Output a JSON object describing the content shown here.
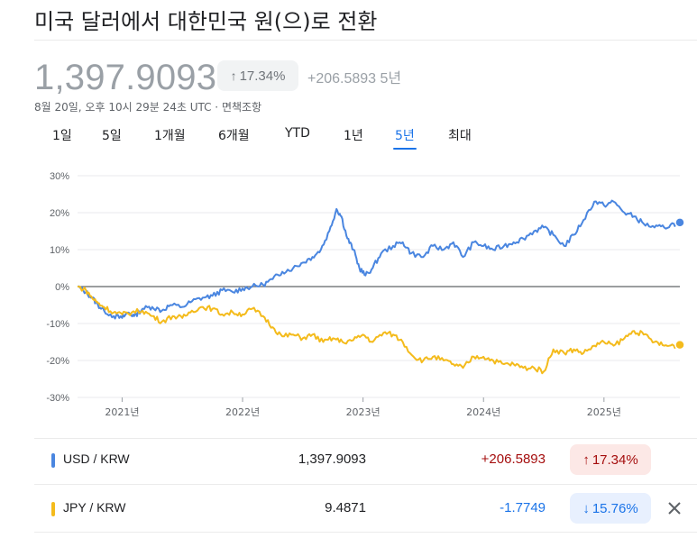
{
  "header": {
    "title": "미국 달러에서 대한민국 원(으)로 전환",
    "price": "1,397.9093",
    "pct_change_arrow": "↑",
    "pct_change": "17.34%",
    "abs_change": "+206.5893 5년",
    "timestamp": "8월 20일, 오후 10시 29분 24초 UTC · ",
    "disclaimer": "면책조항"
  },
  "tabs": [
    "1일",
    "5일",
    "1개월",
    "6개월",
    "YTD",
    "1년",
    "5년",
    "최대"
  ],
  "active_tab": "5년",
  "colors": {
    "usd_line": "#4a86e0",
    "jpy_line": "#f4bb1c",
    "positive": "#a50e0e",
    "positive_bg": "#fce8e6",
    "negative": "#1a73e8",
    "negative_bg": "#e8f0fe",
    "grid": "#e8eaed",
    "zero": "#5f6368"
  },
  "chart_data": {
    "type": "line",
    "title": "",
    "ylabel": "",
    "xlabel": "",
    "ylim": [
      -30,
      30
    ],
    "xlim": [
      2020.63,
      2025.63
    ],
    "yticks": [
      30,
      20,
      10,
      0,
      -10,
      -20,
      -30
    ],
    "ytick_labels": [
      "30%",
      "20%",
      "10%",
      "0%",
      "-10%",
      "-20%",
      "-30%"
    ],
    "xticks": [
      2021,
      2022,
      2023,
      2024,
      2025
    ],
    "xtick_labels": [
      "2021년",
      "2022년",
      "2023년",
      "2024년",
      "2025년"
    ],
    "series": [
      {
        "name": "USD / KRW",
        "points": [
          [
            2020.63,
            0
          ],
          [
            2020.7,
            -1.5
          ],
          [
            2020.75,
            -3
          ],
          [
            2020.8,
            -5
          ],
          [
            2020.85,
            -6.5
          ],
          [
            2020.93,
            -8
          ],
          [
            2021.0,
            -8.5
          ],
          [
            2021.05,
            -7
          ],
          [
            2021.1,
            -8
          ],
          [
            2021.17,
            -6
          ],
          [
            2021.25,
            -5.5
          ],
          [
            2021.33,
            -6.5
          ],
          [
            2021.4,
            -5
          ],
          [
            2021.5,
            -5.5
          ],
          [
            2021.58,
            -4
          ],
          [
            2021.67,
            -3
          ],
          [
            2021.75,
            -2.5
          ],
          [
            2021.83,
            -1
          ],
          [
            2021.92,
            -1.5
          ],
          [
            2022.0,
            -0.5
          ],
          [
            2022.08,
            0
          ],
          [
            2022.17,
            0.5
          ],
          [
            2022.25,
            2
          ],
          [
            2022.33,
            4
          ],
          [
            2022.42,
            5
          ],
          [
            2022.5,
            6.5
          ],
          [
            2022.58,
            8
          ],
          [
            2022.65,
            10
          ],
          [
            2022.72,
            15
          ],
          [
            2022.78,
            21
          ],
          [
            2022.82,
            19
          ],
          [
            2022.87,
            13
          ],
          [
            2022.92,
            10
          ],
          [
            2022.97,
            5
          ],
          [
            2023.02,
            3
          ],
          [
            2023.08,
            5
          ],
          [
            2023.15,
            9
          ],
          [
            2023.25,
            11
          ],
          [
            2023.33,
            12
          ],
          [
            2023.4,
            9
          ],
          [
            2023.5,
            8
          ],
          [
            2023.58,
            11
          ],
          [
            2023.67,
            10
          ],
          [
            2023.75,
            12
          ],
          [
            2023.83,
            8
          ],
          [
            2023.92,
            12
          ],
          [
            2024.0,
            11
          ],
          [
            2024.08,
            10
          ],
          [
            2024.17,
            11
          ],
          [
            2024.25,
            12
          ],
          [
            2024.33,
            13
          ],
          [
            2024.42,
            15
          ],
          [
            2024.5,
            16
          ],
          [
            2024.58,
            14
          ],
          [
            2024.67,
            11
          ],
          [
            2024.75,
            14
          ],
          [
            2024.83,
            18
          ],
          [
            2024.92,
            23
          ],
          [
            2025.0,
            22
          ],
          [
            2025.08,
            23
          ],
          [
            2025.17,
            20
          ],
          [
            2025.25,
            19
          ],
          [
            2025.33,
            17
          ],
          [
            2025.42,
            16
          ],
          [
            2025.5,
            16
          ],
          [
            2025.58,
            17
          ],
          [
            2025.63,
            17.34
          ]
        ]
      },
      {
        "name": "JPY / KRW",
        "points": [
          [
            2020.63,
            0
          ],
          [
            2020.7,
            -1
          ],
          [
            2020.75,
            -3
          ],
          [
            2020.8,
            -4.5
          ],
          [
            2020.85,
            -5.5
          ],
          [
            2020.93,
            -7
          ],
          [
            2021.0,
            -7.5
          ],
          [
            2021.08,
            -7
          ],
          [
            2021.17,
            -6.5
          ],
          [
            2021.25,
            -8
          ],
          [
            2021.33,
            -9.5
          ],
          [
            2021.42,
            -8
          ],
          [
            2021.5,
            -8.5
          ],
          [
            2021.58,
            -6.5
          ],
          [
            2021.67,
            -5.5
          ],
          [
            2021.75,
            -6
          ],
          [
            2021.83,
            -7.5
          ],
          [
            2021.92,
            -7
          ],
          [
            2022.0,
            -7.5
          ],
          [
            2022.08,
            -6
          ],
          [
            2022.17,
            -8
          ],
          [
            2022.25,
            -11
          ],
          [
            2022.33,
            -13.5
          ],
          [
            2022.42,
            -13
          ],
          [
            2022.5,
            -14
          ],
          [
            2022.58,
            -13
          ],
          [
            2022.67,
            -15
          ],
          [
            2022.75,
            -14
          ],
          [
            2022.83,
            -15
          ],
          [
            2022.92,
            -14.5
          ],
          [
            2023.0,
            -13
          ],
          [
            2023.08,
            -15
          ],
          [
            2023.17,
            -12.5
          ],
          [
            2023.25,
            -13
          ],
          [
            2023.33,
            -15
          ],
          [
            2023.42,
            -19
          ],
          [
            2023.5,
            -20
          ],
          [
            2023.58,
            -19
          ],
          [
            2023.67,
            -20
          ],
          [
            2023.75,
            -21
          ],
          [
            2023.83,
            -22
          ],
          [
            2023.92,
            -19
          ],
          [
            2024.0,
            -19
          ],
          [
            2024.08,
            -20
          ],
          [
            2024.17,
            -21
          ],
          [
            2024.25,
            -21
          ],
          [
            2024.33,
            -22
          ],
          [
            2024.42,
            -22
          ],
          [
            2024.5,
            -23
          ],
          [
            2024.58,
            -17
          ],
          [
            2024.67,
            -18
          ],
          [
            2024.75,
            -17
          ],
          [
            2024.83,
            -18
          ],
          [
            2024.92,
            -16
          ],
          [
            2025.0,
            -15
          ],
          [
            2025.08,
            -16
          ],
          [
            2025.17,
            -14
          ],
          [
            2025.25,
            -12
          ],
          [
            2025.33,
            -13
          ],
          [
            2025.42,
            -15
          ],
          [
            2025.5,
            -16
          ],
          [
            2025.58,
            -16
          ],
          [
            2025.63,
            -15.76
          ]
        ]
      }
    ]
  },
  "legend": [
    {
      "name": "USD / KRW",
      "value": "1,397.9093",
      "change": "+206.5893",
      "pct_arrow": "↑",
      "pct": "17.34%",
      "direction": "up"
    },
    {
      "name": "JPY / KRW",
      "value": "9.4871",
      "change": "-1.7749",
      "pct_arrow": "↓",
      "pct": "15.76%",
      "direction": "down"
    }
  ],
  "close_icon": "close-icon"
}
